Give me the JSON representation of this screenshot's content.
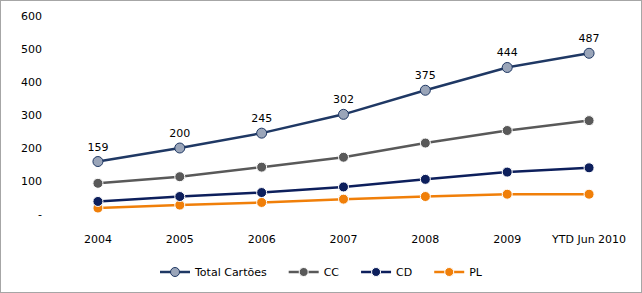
{
  "chart_data": {
    "type": "line",
    "categories": [
      "2004",
      "2005",
      "2006",
      "2007",
      "2008",
      "2009",
      "YTD Jun 2010"
    ],
    "series": [
      {
        "name": "Total Cartões",
        "color": "#1f3864",
        "marker": "circle-light",
        "data_labels": true,
        "values": [
          159,
          200,
          245,
          302,
          375,
          444,
          487
        ]
      },
      {
        "name": "CC",
        "color": "#595959",
        "marker": "circle",
        "values": [
          93,
          113,
          142,
          172,
          215,
          253,
          283
        ]
      },
      {
        "name": "CD",
        "color": "#0d1f5c",
        "marker": "circle",
        "values": [
          38,
          53,
          65,
          82,
          105,
          127,
          140
        ]
      },
      {
        "name": "PL",
        "color": "#f07f09",
        "marker": "circle",
        "values": [
          18,
          27,
          35,
          45,
          53,
          60,
          60
        ]
      }
    ],
    "ylim": [
      0,
      600
    ],
    "yticks": [
      {
        "value": 0,
        "label": "-"
      },
      100,
      200,
      300,
      400,
      500,
      600
    ],
    "grid": false,
    "legend": "bottom"
  }
}
